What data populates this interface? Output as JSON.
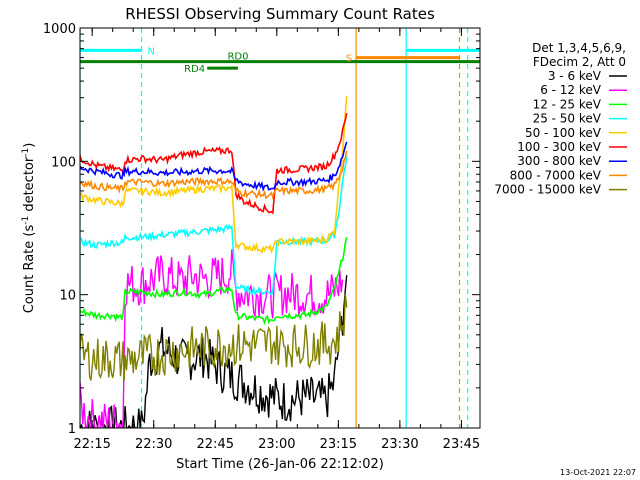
{
  "chart_data": {
    "type": "line",
    "title": "RHESSI Observing Summary Count Rates",
    "xlabel": "Start Time (26-Jan-06 22:12:02)",
    "ylabel": "Count Rate (s⁻¹ detector⁻¹)",
    "ylabel_main": "Count Rate (s",
    "ylabel_sup1": "-1",
    "ylabel_mid": " detector",
    "ylabel_sup2": "-1",
    "ylabel_end": ")",
    "x_units": "minutes after 22:12:02",
    "xlim": [
      0,
      97.5
    ],
    "ylim": [
      1,
      1000
    ],
    "yscale": "log",
    "x_ticks": [
      {
        "label": "22:15",
        "x": 2.97
      },
      {
        "label": "22:30",
        "x": 17.97
      },
      {
        "label": "22:45",
        "x": 32.97
      },
      {
        "label": "23:00",
        "x": 47.97
      },
      {
        "label": "23:15",
        "x": 62.97
      },
      {
        "label": "23:30",
        "x": 77.97
      },
      {
        "label": "23:45",
        "x": 92.97
      }
    ],
    "y_ticks": [
      {
        "label": "1",
        "y": 1
      },
      {
        "label": "10",
        "y": 10
      },
      {
        "label": "100",
        "y": 100
      },
      {
        "label": "1000",
        "y": 1000
      }
    ],
    "legend_position": "right",
    "legend_header": [
      "Det 1,3,4,5,6,9,",
      "FDecim 2, Att 0"
    ],
    "series": [
      {
        "name": "3 - 6 keV",
        "color": "#000000",
        "x": [
          0,
          9,
          11,
          15,
          16,
          17,
          20,
          25,
          30,
          35,
          40,
          45,
          50,
          55,
          60,
          62,
          63,
          64,
          65
        ],
        "y": [
          1,
          1,
          1,
          1,
          1.6,
          3.2,
          4,
          3.2,
          3.5,
          2.6,
          2.2,
          1.8,
          1.6,
          1.7,
          1.6,
          2.2,
          4,
          7,
          14
        ]
      },
      {
        "name": "6 - 12 keV",
        "color": "#ff00ff",
        "x": [
          0,
          2,
          4,
          9,
          10.5,
          11,
          15,
          16,
          20,
          25,
          27,
          30,
          35,
          37,
          38,
          40,
          45,
          47,
          48,
          50,
          55,
          60,
          62,
          64
        ],
        "y": [
          1.5,
          1.2,
          1.1,
          1.1,
          1.1,
          12,
          12,
          12.5,
          14,
          12.5,
          14,
          13,
          14,
          15,
          10.8,
          10.3,
          10,
          9.8,
          10,
          10.3,
          10,
          9.8,
          10.8,
          13
        ]
      },
      {
        "name": "12 - 25 keV",
        "color": "#00ff00",
        "x": [
          0,
          4,
          8,
          9,
          10.5,
          11,
          15,
          20,
          25,
          30,
          35,
          37,
          38,
          40,
          45,
          47,
          48,
          50,
          55,
          60,
          62,
          63,
          64,
          65
        ],
        "y": [
          7.5,
          7,
          7,
          6.8,
          6.8,
          10.5,
          10.5,
          10,
          10.5,
          10,
          10.8,
          11,
          7,
          6.8,
          6.5,
          6.5,
          7,
          7,
          7,
          8,
          11,
          14,
          19,
          27
        ]
      },
      {
        "name": "25 - 50 keV",
        "color": "#00ffff",
        "x": [
          0,
          4,
          8,
          10.5,
          11,
          15,
          20,
          25,
          30,
          35,
          37,
          38,
          40,
          45,
          47,
          48,
          50,
          55,
          60,
          62,
          63,
          64,
          65
        ],
        "y": [
          25,
          23.5,
          24.5,
          24.5,
          27,
          27,
          28,
          29,
          30,
          31,
          32,
          11.5,
          11,
          10.5,
          10.5,
          25,
          25,
          25,
          25.5,
          28,
          40,
          70,
          110
        ]
      },
      {
        "name": "50 - 100 keV",
        "color": "#ffcc00",
        "x": [
          0,
          4,
          8,
          10.5,
          11,
          15,
          20,
          25,
          30,
          35,
          37,
          38,
          40,
          45,
          47,
          48,
          50,
          55,
          60,
          62,
          63,
          64,
          65
        ],
        "y": [
          55,
          51,
          49,
          48,
          60,
          60,
          58,
          60,
          62,
          63,
          63,
          24,
          23,
          22,
          22,
          25,
          25,
          25,
          26,
          30,
          60,
          120,
          310
        ]
      },
      {
        "name": "100 - 300 keV",
        "color": "#ff0000",
        "x": [
          0,
          4,
          8,
          10.5,
          11,
          15,
          20,
          25,
          30,
          35,
          37,
          38,
          40,
          45,
          47,
          48,
          50,
          55,
          60,
          62,
          63,
          64,
          65
        ],
        "y": [
          105,
          93,
          88,
          86,
          102,
          105,
          102,
          112,
          118,
          120,
          122,
          57,
          50,
          44,
          42,
          86,
          86,
          88,
          92,
          110,
          130,
          165,
          230
        ]
      },
      {
        "name": "300 - 800 keV",
        "color": "#0000ff",
        "x": [
          0,
          4,
          8,
          10.5,
          11,
          15,
          20,
          25,
          30,
          35,
          37,
          38,
          40,
          45,
          47,
          48,
          50,
          55,
          60,
          62,
          63,
          64,
          65
        ],
        "y": [
          90,
          84,
          80,
          78,
          84,
          84,
          82,
          83,
          85,
          85,
          84,
          72,
          68,
          64,
          62,
          70,
          70,
          70,
          72,
          78,
          90,
          110,
          140
        ]
      },
      {
        "name": "800 - 7000 keV",
        "color": "#ff8800",
        "x": [
          0,
          4,
          8,
          10.5,
          11,
          15,
          20,
          25,
          30,
          35,
          37,
          38,
          40,
          45,
          47,
          48,
          50,
          55,
          60,
          62,
          63,
          64,
          65
        ],
        "y": [
          70,
          65,
          63,
          62,
          70,
          70,
          68,
          70,
          71,
          71,
          70,
          60,
          58,
          56,
          55,
          60,
          60,
          60,
          62,
          66,
          75,
          90,
          120
        ]
      },
      {
        "name": "7000 - 15000 keV",
        "color": "#808000",
        "x": [
          0,
          4,
          8,
          10.5,
          11,
          15,
          20,
          25,
          30,
          35,
          37,
          38,
          40,
          45,
          47,
          48,
          50,
          55,
          60,
          62,
          63,
          64,
          65
        ],
        "y": [
          3.5,
          3.3,
          3.3,
          3.2,
          3.2,
          3.4,
          3.6,
          3.9,
          4,
          4.2,
          4.3,
          4.2,
          4.2,
          4.3,
          4.4,
          4.2,
          4.2,
          4.2,
          4.3,
          4.5,
          5,
          6.5,
          8
        ]
      }
    ],
    "annotations": [
      {
        "label": "N",
        "x_start": 0,
        "x_end": 15,
        "y": 680,
        "color": "#00ffff"
      },
      {
        "label": "S",
        "x_start": 67.3,
        "x_end": 92.5,
        "y": 600,
        "color": "#ff8800"
      },
      {
        "label": "RD0",
        "x_start": 0,
        "x_end": 97.5,
        "y": 560,
        "color": "#008000"
      },
      {
        "label": "RD4",
        "x_start": 31,
        "x_end": 38.5,
        "y": 500,
        "color": "#008000"
      }
    ],
    "segments": [
      {
        "x_start": 79.5,
        "x_end": 97.5,
        "y": 680,
        "color": "#00ffff"
      }
    ],
    "vertical_lines": [
      {
        "x": 0,
        "color": "#00ffff",
        "style": "solid"
      },
      {
        "x": 15,
        "color": "#00ffff",
        "style": "dashed"
      },
      {
        "x": 67.3,
        "color": "#ff8800",
        "style": "solid"
      },
      {
        "x": 79.5,
        "color": "#00ffff",
        "style": "solid"
      },
      {
        "x": 92.5,
        "color": "#ff8800",
        "style": "dashed"
      },
      {
        "x": 94.5,
        "color": "#00ffff",
        "style": "dashed"
      }
    ]
  },
  "footer": {
    "date_stamp": "13-Oct-2021 22:07"
  }
}
